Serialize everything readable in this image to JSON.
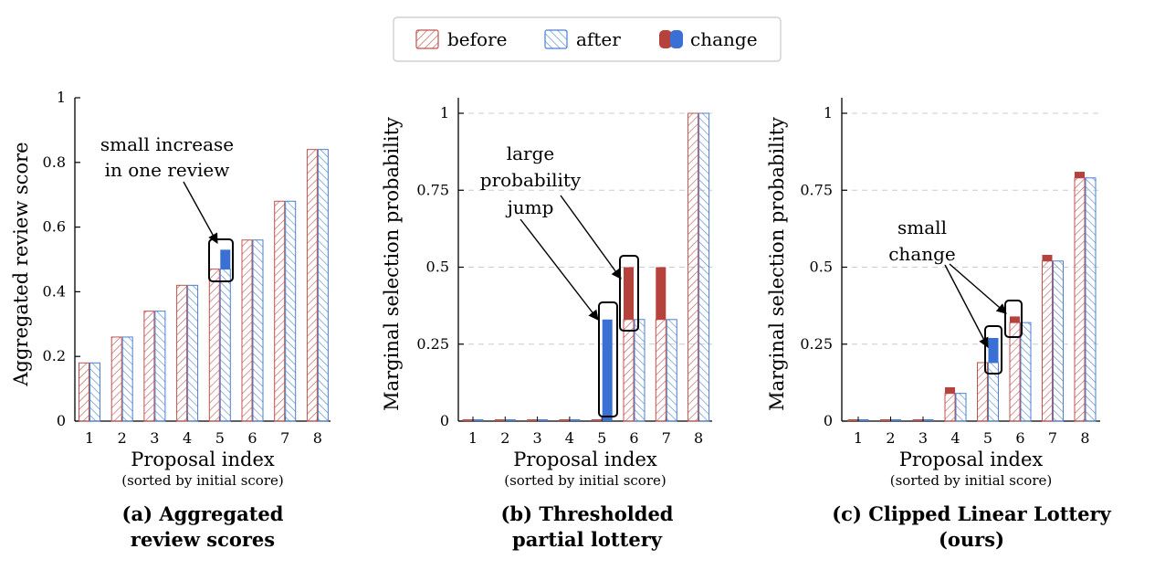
{
  "legend": {
    "before_label": "before",
    "after_label": "after",
    "change_label": "change"
  },
  "colors": {
    "before": "#c0504d",
    "after": "#4a7fd0",
    "change_before": "#b5423c",
    "change_after": "#3a6fd4",
    "grid": "#cccccc"
  },
  "chart_data": [
    {
      "type": "bar",
      "categories": [
        "1",
        "2",
        "3",
        "4",
        "5",
        "6",
        "7",
        "8"
      ],
      "series": [
        {
          "name": "before",
          "values": [
            0.18,
            0.26,
            0.34,
            0.42,
            0.47,
            0.56,
            0.68,
            0.84
          ]
        },
        {
          "name": "after",
          "values": [
            0.18,
            0.26,
            0.34,
            0.42,
            0.53,
            0.56,
            0.68,
            0.84
          ]
        }
      ],
      "ylabel": "Aggregated review score",
      "xlabel": "Proposal index",
      "xsublabel": "(sorted by initial score)",
      "caption": [
        "(a) Aggregated",
        "review scores"
      ],
      "ylim": [
        0,
        1
      ],
      "yticks": [
        0,
        0.2,
        0.4,
        0.6,
        0.8,
        1
      ],
      "ytick_labels": [
        "0",
        "0.2",
        "0.4",
        "0.6",
        "0.8",
        "1"
      ],
      "grid": false,
      "annotation": [
        "small increase",
        "in one review"
      ],
      "highlight_index": [
        4
      ]
    },
    {
      "type": "bar",
      "categories": [
        "1",
        "2",
        "3",
        "4",
        "5",
        "6",
        "7",
        "8"
      ],
      "series": [
        {
          "name": "before",
          "values": [
            0,
            0,
            0,
            0,
            0,
            0.5,
            0.5,
            1
          ]
        },
        {
          "name": "after",
          "values": [
            0,
            0,
            0,
            0,
            0.33,
            0.33,
            0.33,
            1
          ]
        }
      ],
      "ylabel": "Marginal selection probability",
      "xlabel": "Proposal index",
      "xsublabel": "(sorted by initial score)",
      "caption": [
        "(b) Thresholded",
        "partial lottery"
      ],
      "ylim": [
        0,
        1.05
      ],
      "yticks": [
        0,
        0.25,
        0.5,
        0.75,
        1
      ],
      "ytick_labels": [
        "0",
        "0.25",
        "0.5",
        "0.75",
        "1"
      ],
      "grid": true,
      "annotation": [
        "large",
        "probability",
        "jump"
      ],
      "highlight_index": [
        4,
        5
      ]
    },
    {
      "type": "bar",
      "categories": [
        "1",
        "2",
        "3",
        "4",
        "5",
        "6",
        "7",
        "8"
      ],
      "series": [
        {
          "name": "before",
          "values": [
            0,
            0,
            0,
            0.11,
            0.19,
            0.34,
            0.54,
            0.81
          ]
        },
        {
          "name": "after",
          "values": [
            0,
            0,
            0,
            0.09,
            0.27,
            0.32,
            0.52,
            0.79
          ]
        }
      ],
      "ylabel": "Marginal selection probability",
      "xlabel": "Proposal index",
      "xsublabel": "(sorted by initial score)",
      "caption": [
        "(c) Clipped Linear Lottery",
        "(ours)"
      ],
      "ylim": [
        0,
        1.05
      ],
      "yticks": [
        0,
        0.25,
        0.5,
        0.75,
        1
      ],
      "ytick_labels": [
        "0",
        "0.25",
        "0.5",
        "0.75",
        "1"
      ],
      "grid": true,
      "annotation": [
        "small",
        "change"
      ],
      "highlight_index": [
        4,
        5
      ]
    }
  ]
}
